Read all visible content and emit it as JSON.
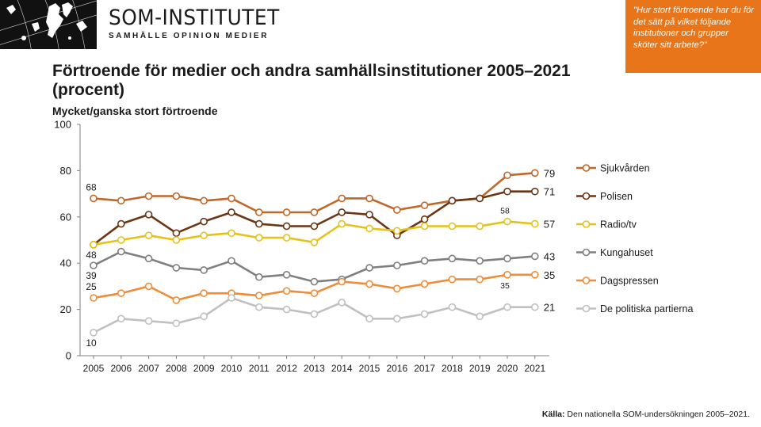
{
  "brand": {
    "name": "SOM-INSTITUTET",
    "tagline": "SAMHÄLLE OPINION MEDIER"
  },
  "question": "\"Hur stort förtroende har du för det sätt på vilket följande institutioner och grupper sköter sitt arbete?\"",
  "title": "Förtroende för medier och andra samhällsinstitutioner 2005–2021 (procent)",
  "subtitle": "Mycket/ganska stort förtroende",
  "source": {
    "label": "Källa:",
    "text": "Den nationella SOM-undersökningen 2005–2021."
  },
  "chart_data": {
    "type": "line",
    "title": "Förtroende för medier och andra samhällsinstitutioner 2005–2021 (procent)",
    "subtitle": "Mycket/ganska stort förtroende",
    "x": [
      "2005",
      "2006",
      "2007",
      "2008",
      "2009",
      "2010",
      "2011",
      "2012",
      "2013",
      "2014",
      "2015",
      "2016",
      "2017",
      "2018",
      "2019",
      "2020",
      "2021"
    ],
    "ylim": [
      0,
      100
    ],
    "yticks": [
      0,
      20,
      40,
      60,
      80,
      100
    ],
    "grid": false,
    "legend": "right",
    "series": [
      {
        "name": "Sjukvården",
        "color": "#c0672a",
        "fill": "#ffffff",
        "values": [
          68,
          67,
          69,
          69,
          67,
          68,
          62,
          62,
          62,
          68,
          68,
          63,
          65,
          67,
          68,
          78,
          79
        ],
        "labels": [
          {
            "i": 0,
            "text": "68",
            "pos": "above"
          },
          {
            "i": 16,
            "text": "79",
            "pos": "end"
          }
        ]
      },
      {
        "name": "Polisen",
        "color": "#6b3513",
        "fill": "#ffffff",
        "values": [
          48,
          57,
          61,
          53,
          58,
          62,
          57,
          56,
          56,
          62,
          61,
          52,
          59,
          67,
          68,
          71,
          71
        ],
        "labels": [
          {
            "i": 16,
            "text": "71",
            "pos": "end"
          }
        ]
      },
      {
        "name": "Radio/tv",
        "color": "#e5c21a",
        "fill": "#ffffff",
        "values": [
          48,
          50,
          52,
          50,
          52,
          53,
          51,
          51,
          49,
          57,
          55,
          54,
          56,
          56,
          56,
          58,
          57
        ],
        "labels": [
          {
            "i": 0,
            "text": "48",
            "pos": "below"
          },
          {
            "i": 15,
            "text": "58",
            "pos": "above"
          },
          {
            "i": 16,
            "text": "57",
            "pos": "end"
          }
        ]
      },
      {
        "name": "Kungahuset",
        "color": "#7f7f7f",
        "fill": "#ffffff",
        "values": [
          39,
          45,
          42,
          38,
          37,
          41,
          34,
          35,
          32,
          33,
          38,
          39,
          41,
          42,
          41,
          42,
          43
        ],
        "labels": [
          {
            "i": 0,
            "text": "39",
            "pos": "below"
          },
          {
            "i": 16,
            "text": "43",
            "pos": "end"
          }
        ]
      },
      {
        "name": "Dagspressen",
        "color": "#ef8c3a",
        "fill": "#ffffff",
        "values": [
          25,
          27,
          30,
          24,
          27,
          27,
          26,
          28,
          27,
          32,
          31,
          29,
          31,
          33,
          33,
          35,
          35
        ],
        "labels": [
          {
            "i": 0,
            "text": "25",
            "pos": "above"
          },
          {
            "i": 15,
            "text": "35",
            "pos": "below"
          },
          {
            "i": 16,
            "text": "35",
            "pos": "end"
          }
        ]
      },
      {
        "name": "De politiska partierna",
        "color": "#c0c0c0",
        "fill": "#ffffff",
        "values": [
          10,
          16,
          15,
          14,
          17,
          25,
          21,
          20,
          18,
          23,
          16,
          16,
          18,
          21,
          17,
          21,
          21
        ],
        "labels": [
          {
            "i": 0,
            "text": "10",
            "pos": "below"
          },
          {
            "i": 16,
            "text": "21",
            "pos": "end"
          }
        ]
      }
    ]
  }
}
